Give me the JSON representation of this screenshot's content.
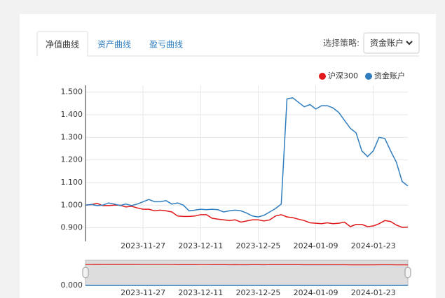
{
  "tabs": [
    "净值曲线",
    "资产曲线",
    "盈亏曲线"
  ],
  "strategy_label": "选择策略:",
  "strategy_value": "资金账户",
  "chart_data": {
    "type": "line",
    "categories": [
      null,
      null,
      null,
      null,
      null,
      null,
      null,
      null,
      null,
      null,
      "2023-11-27",
      null,
      null,
      null,
      null,
      null,
      null,
      null,
      null,
      null,
      "2023-12-11",
      null,
      null,
      null,
      null,
      null,
      null,
      null,
      null,
      null,
      "2023-12-25",
      null,
      null,
      null,
      null,
      null,
      null,
      null,
      null,
      null,
      "2024-01-09",
      null,
      null,
      null,
      null,
      null,
      null,
      null,
      null,
      null,
      "2024-01-23",
      null,
      null,
      null,
      null,
      null,
      null
    ],
    "series": [
      {
        "name": "沪深300",
        "color": "#e0191b",
        "values": [
          1.0,
          1.002,
          1.008,
          0.998,
          0.998,
          1.0,
          1.0,
          0.992,
          0.995,
          0.988,
          0.982,
          0.982,
          0.975,
          0.978,
          0.975,
          0.97,
          0.952,
          0.95,
          0.95,
          0.952,
          0.958,
          0.958,
          0.942,
          0.938,
          0.935,
          0.932,
          0.935,
          0.925,
          0.93,
          0.935,
          0.935,
          0.93,
          0.935,
          0.952,
          0.958,
          0.948,
          0.945,
          0.938,
          0.932,
          0.922,
          0.92,
          0.918,
          0.922,
          0.918,
          0.92,
          0.925,
          0.905,
          0.915,
          0.915,
          0.905,
          0.908,
          0.918,
          0.932,
          0.928,
          0.912,
          0.902,
          0.903
        ]
      },
      {
        "name": "资金账户",
        "color": "#2f7dbf",
        "values": [
          1.0,
          1.003,
          0.998,
          1.0,
          1.01,
          1.005,
          0.998,
          1.005,
          0.998,
          1.005,
          1.015,
          1.025,
          1.015,
          1.015,
          1.02,
          1.005,
          1.01,
          1.0,
          0.975,
          0.978,
          0.982,
          0.98,
          0.982,
          0.98,
          0.97,
          0.975,
          0.978,
          0.975,
          0.965,
          0.952,
          0.948,
          0.955,
          0.97,
          0.985,
          1.005,
          1.47,
          1.475,
          1.455,
          1.435,
          1.445,
          1.425,
          1.44,
          1.44,
          1.43,
          1.41,
          1.375,
          1.34,
          1.32,
          1.24,
          1.215,
          1.24,
          1.3,
          1.295,
          1.24,
          1.19,
          1.105,
          1.085
        ]
      }
    ],
    "ylim": [
      0.84,
      1.53
    ],
    "yticks": [
      {
        "value": 0.9,
        "label": "0.900"
      },
      {
        "value": 1.0,
        "label": "1.000"
      },
      {
        "value": 1.1,
        "label": "1.100"
      },
      {
        "value": 1.2,
        "label": "1.200"
      },
      {
        "value": 1.3,
        "label": "1.300"
      },
      {
        "value": 1.4,
        "label": "1.400"
      },
      {
        "value": 1.5,
        "label": "1.500"
      }
    ],
    "grid": true,
    "legend": "top-right",
    "navigator": {
      "yticks": [
        {
          "value": 0,
          "label": "0.000"
        }
      ]
    }
  }
}
